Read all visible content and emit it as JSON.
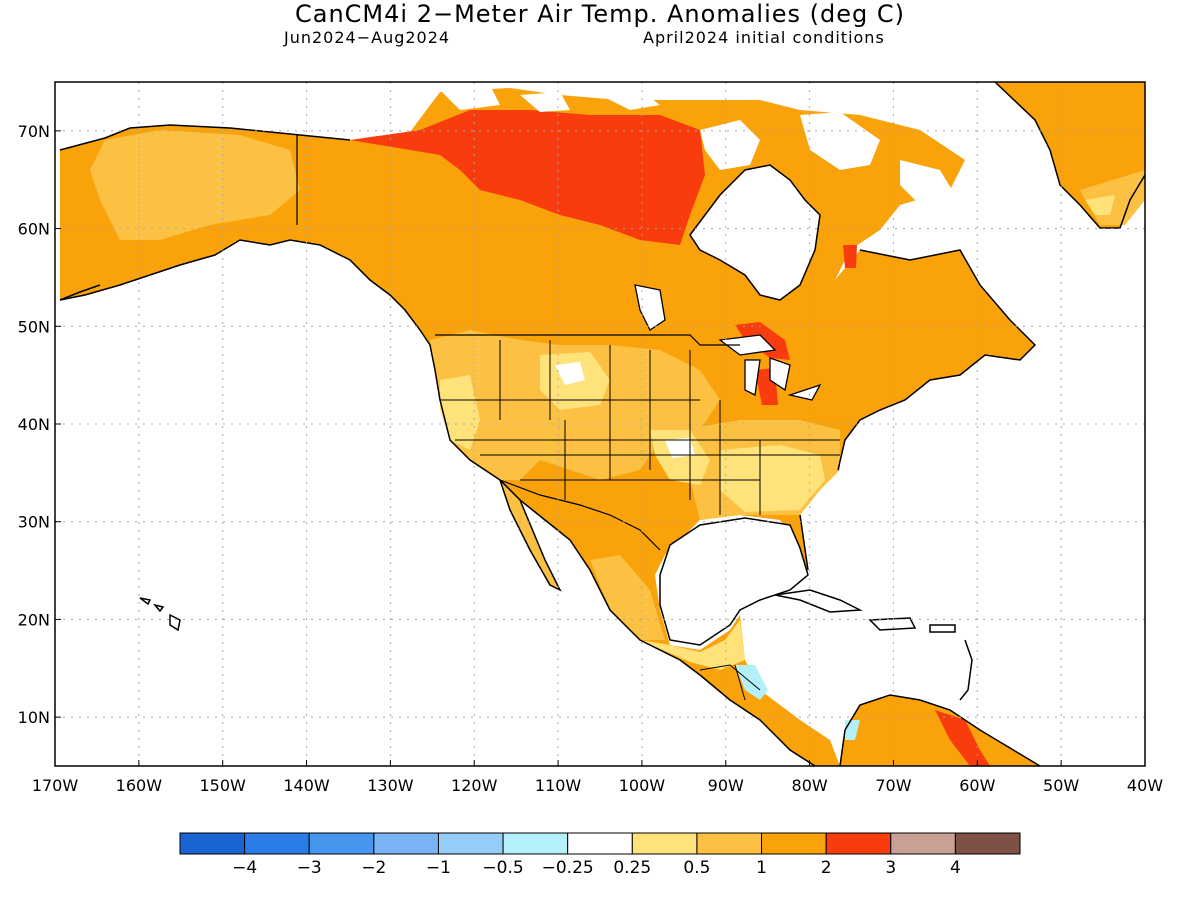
{
  "title": "CanCM4i 2−Meter Air Temp. Anomalies (deg C)",
  "subtitle_left": "Jun2024−Aug2024",
  "subtitle_right": "April2024 initial conditions",
  "map": {
    "lon_range": [
      -170,
      -40
    ],
    "lat_range": [
      5,
      75
    ],
    "lon_ticks": [
      "170W",
      "160W",
      "150W",
      "140W",
      "130W",
      "120W",
      "110W",
      "100W",
      "90W",
      "80W",
      "70W",
      "60W",
      "50W",
      "40W"
    ],
    "lat_ticks": [
      "10N",
      "20N",
      "30N",
      "40N",
      "50N",
      "60N",
      "70N"
    ],
    "grid": "dotted",
    "ocean_color": "#ffffff"
  },
  "colorbar": {
    "colors": [
      "#1a64d2",
      "#2a7de8",
      "#4696f0",
      "#78b4f5",
      "#96cdf8",
      "#b4f0fa",
      "#ffffff",
      "#ffe27a",
      "#fcc042",
      "#f9a20a",
      "#f83c0e",
      "#c8a096",
      "#7e5046"
    ],
    "labels": [
      "−4",
      "−3",
      "−2",
      "−1",
      "−0.5",
      "−0.25",
      "0.25",
      "0.5",
      "1",
      "2",
      "3",
      "4"
    ]
  }
}
